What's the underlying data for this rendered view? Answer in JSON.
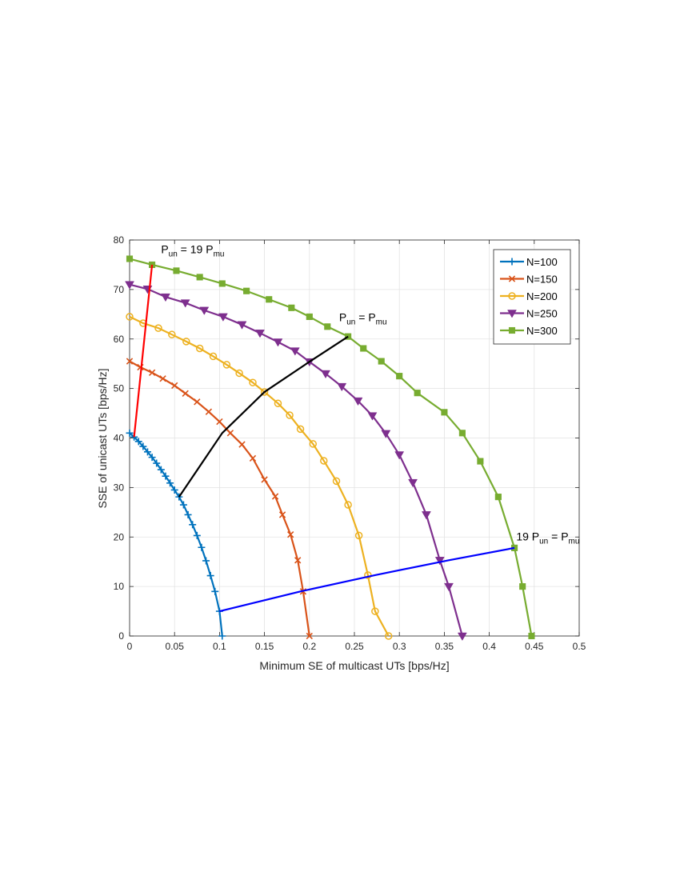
{
  "chart_data": {
    "type": "line",
    "xlabel": "Minimum SE of multicast UTs [bps/Hz]",
    "ylabel": "SSE of unicast UTs [bps/Hz]",
    "xlim": [
      0,
      0.5
    ],
    "ylim": [
      0,
      80
    ],
    "xticks": [
      0,
      0.05,
      0.1,
      0.15,
      0.2,
      0.25,
      0.3,
      0.35,
      0.4,
      0.45,
      0.5
    ],
    "xtick_labels": [
      "0",
      "0.05",
      "0.1",
      "0.15",
      "0.2",
      "0.25",
      "0.3",
      "0.35",
      "0.4",
      "0.45",
      "0.5"
    ],
    "yticks": [
      0,
      10,
      20,
      30,
      40,
      50,
      60,
      70,
      80
    ],
    "ytick_labels": [
      "0",
      "10",
      "20",
      "30",
      "40",
      "50",
      "60",
      "70",
      "80"
    ],
    "grid": true,
    "legend_position": "top-right",
    "series": [
      {
        "name": "N=100",
        "color": "#0072BD",
        "marker": "plus",
        "x": [
          0,
          0.005,
          0.01,
          0.015,
          0.02,
          0.025,
          0.03,
          0.035,
          0.04,
          0.045,
          0.05,
          0.055,
          0.06,
          0.065,
          0.07,
          0.075,
          0.08,
          0.085,
          0.09,
          0.095,
          0.1,
          0.103
        ],
        "y": [
          41,
          40.2,
          39.3,
          38.3,
          37.2,
          36.1,
          34.9,
          33.6,
          32.3,
          30.9,
          29.5,
          28.1,
          26.5,
          24.5,
          22.5,
          20.3,
          17.9,
          15.2,
          12.2,
          9,
          5,
          0
        ]
      },
      {
        "name": "N=150",
        "color": "#D95319",
        "marker": "cross",
        "x": [
          0,
          0.012,
          0.025,
          0.037,
          0.05,
          0.062,
          0.075,
          0.088,
          0.1,
          0.112,
          0.125,
          0.137,
          0.15,
          0.162,
          0.17,
          0.179,
          0.187,
          0.193,
          0.2
        ],
        "y": [
          55.5,
          54.3,
          53.2,
          52,
          50.6,
          49,
          47.3,
          45.3,
          43.3,
          41,
          38.7,
          35.9,
          31.6,
          28.2,
          24.5,
          20.5,
          15.3,
          9,
          0
        ]
      },
      {
        "name": "N=200",
        "color": "#EDB120",
        "marker": "circle",
        "x": [
          0,
          0.015,
          0.032,
          0.047,
          0.063,
          0.078,
          0.093,
          0.108,
          0.122,
          0.137,
          0.15,
          0.165,
          0.178,
          0.19,
          0.204,
          0.216,
          0.23,
          0.243,
          0.255,
          0.265,
          0.273,
          0.288
        ],
        "y": [
          64.5,
          63.2,
          62.2,
          60.9,
          59.5,
          58.1,
          56.5,
          54.8,
          53.1,
          51.2,
          49.3,
          47,
          44.6,
          41.8,
          38.8,
          35.4,
          31.3,
          26.5,
          20.3,
          12.3,
          5,
          0
        ]
      },
      {
        "name": "N=250",
        "color": "#7E2F8E",
        "marker": "triangle-down",
        "x": [
          0,
          0.02,
          0.04,
          0.062,
          0.083,
          0.104,
          0.125,
          0.145,
          0.165,
          0.184,
          0.2,
          0.218,
          0.236,
          0.254,
          0.27,
          0.285,
          0.3,
          0.315,
          0.33,
          0.345,
          0.355,
          0.37
        ],
        "y": [
          71,
          70.1,
          68.5,
          67.3,
          65.8,
          64.5,
          62.9,
          61.2,
          59.4,
          57.6,
          55.4,
          53,
          50.4,
          47.5,
          44.5,
          40.9,
          36.6,
          31,
          24.5,
          15.3,
          10,
          0
        ]
      },
      {
        "name": "N=300",
        "color": "#77AC30",
        "marker": "square",
        "x": [
          0,
          0.025,
          0.052,
          0.078,
          0.103,
          0.13,
          0.155,
          0.18,
          0.2,
          0.22,
          0.243,
          0.26,
          0.28,
          0.3,
          0.32,
          0.35,
          0.37,
          0.39,
          0.41,
          0.428,
          0.437,
          0.447
        ],
        "y": [
          76.2,
          75,
          73.8,
          72.5,
          71.2,
          69.7,
          68,
          66.3,
          64.5,
          62.5,
          60.5,
          58.1,
          55.5,
          52.5,
          49.1,
          45.2,
          41,
          35.3,
          28.1,
          17.8,
          10,
          0
        ]
      }
    ],
    "extra_lines": [
      {
        "color": "#FF0000",
        "x": [
          0.005,
          0.025
        ],
        "y": [
          40.2,
          75
        ]
      },
      {
        "color": "#000000",
        "x": [
          0.055,
          0.103,
          0.15,
          0.2,
          0.243
        ],
        "y": [
          28.1,
          41,
          49.3,
          55.4,
          60.5
        ]
      },
      {
        "color": "#0000FF",
        "x": [
          0.1,
          0.19,
          0.273,
          0.355,
          0.428
        ],
        "y": [
          5,
          9,
          12.3,
          15.3,
          17.8
        ]
      }
    ],
    "annotations": [
      {
        "id": "red",
        "lead": "",
        "p1": "P",
        "s1": "un",
        "mid": " = 19 P",
        "s2": "mu",
        "x": 0.035,
        "y": 77.3
      },
      {
        "id": "black",
        "lead": "",
        "p1": "P",
        "s1": "un",
        "mid": " = P",
        "s2": "mu",
        "x": 0.233,
        "y": 63.6
      },
      {
        "id": "blue",
        "lead": "19 ",
        "p1": "P",
        "s1": "un",
        "mid": " = P",
        "s2": "mu",
        "x": 0.43,
        "y": 19.3
      }
    ]
  }
}
